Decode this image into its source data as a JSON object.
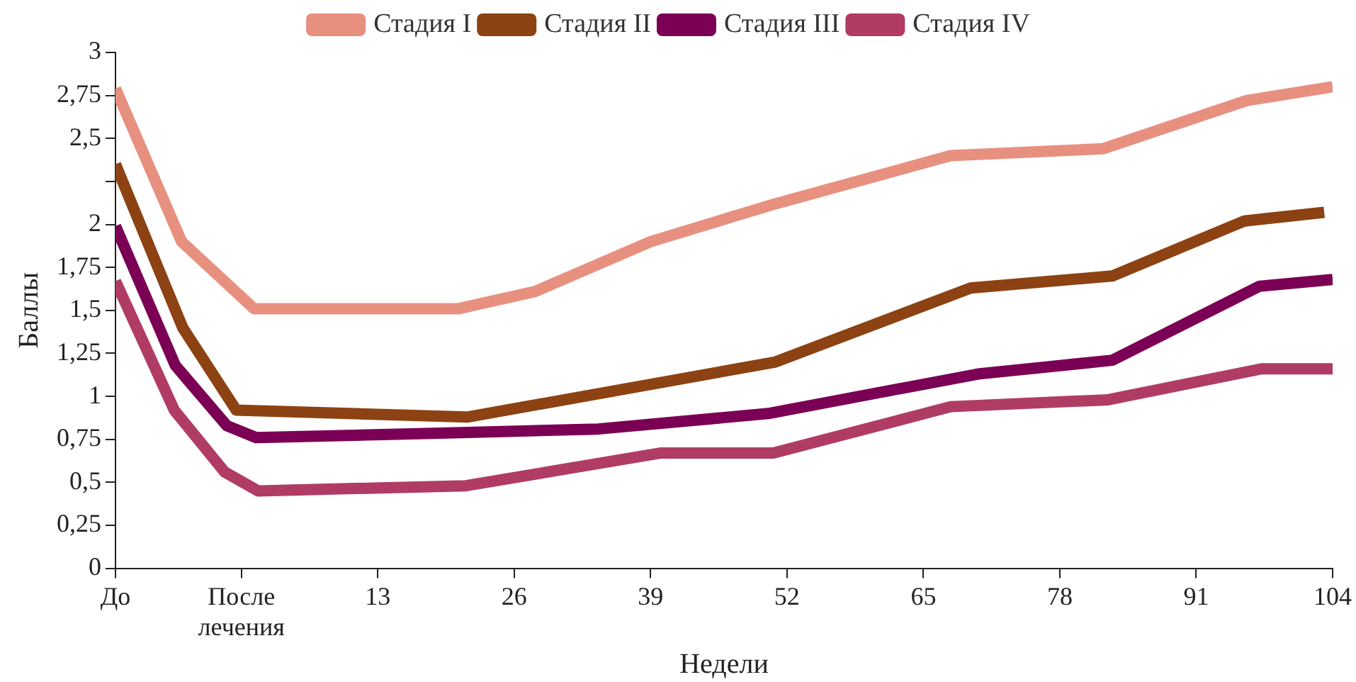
{
  "chart_data": {
    "type": "line",
    "xlabel": "Недели",
    "ylabel": "Баллы",
    "xlim": [
      -12,
      104
    ],
    "xticks": [
      {
        "value": -12,
        "label": "До"
      },
      {
        "value": 0,
        "label": "После лечения"
      },
      13,
      26,
      39,
      52,
      65,
      78,
      91,
      104
    ],
    "ylim": [
      0,
      3
    ],
    "yticks": [
      0,
      {
        "value": 0.25,
        "label": "0,25"
      },
      {
        "value": 0.5,
        "label": "0,5"
      },
      {
        "value": 0.75,
        "label": "0,75"
      },
      1,
      {
        "value": 1.25,
        "label": "1,25"
      },
      {
        "value": 1.5,
        "label": "1,5"
      },
      {
        "value": 1.75,
        "label": "1,75"
      },
      2,
      {
        "value": 2.25,
        "label": null
      },
      {
        "value": 2.5,
        "label": "2,5"
      },
      {
        "value": 2.75,
        "label": "2,75"
      },
      3
    ],
    "grid": false,
    "legend": "top",
    "marker": "none",
    "line_style": "solid",
    "series": [
      {
        "name": "Стадия I",
        "color": "#e8907f",
        "x": [
          -12,
          -5.7,
          1.2,
          20.7,
          28,
          39,
          50.9,
          67.6,
          82.1,
          95.8,
          104
        ],
        "values": [
          2.79,
          1.9,
          1.51,
          1.51,
          1.61,
          1.9,
          2.12,
          2.4,
          2.44,
          2.72,
          2.8
        ]
      },
      {
        "name": "Стадия II",
        "color": "#8c4212",
        "x": [
          -12,
          -5.6,
          -0.5,
          21.6,
          50.9,
          69.5,
          83,
          95.6,
          103.2
        ],
        "values": [
          2.35,
          1.4,
          0.92,
          0.88,
          1.2,
          1.63,
          1.7,
          2.02,
          2.07
        ]
      },
      {
        "name": "Стадия III",
        "color": "#7b0055",
        "x": [
          -12,
          -6.3,
          -1.4,
          1.4,
          21.6,
          34,
          50.2,
          70.2,
          83,
          97,
          104
        ],
        "values": [
          1.99,
          1.18,
          0.83,
          0.76,
          0.79,
          0.81,
          0.9,
          1.13,
          1.21,
          1.64,
          1.68
        ]
      },
      {
        "name": "Стадия IV",
        "color": "#b03c65",
        "x": [
          -12,
          -6.4,
          -1.6,
          1.6,
          21.4,
          39.9,
          50.7,
          67.6,
          82.6,
          97.2,
          104
        ],
        "values": [
          1.67,
          0.92,
          0.56,
          0.45,
          0.48,
          0.67,
          0.67,
          0.94,
          0.98,
          1.16,
          1.16
        ]
      }
    ]
  }
}
